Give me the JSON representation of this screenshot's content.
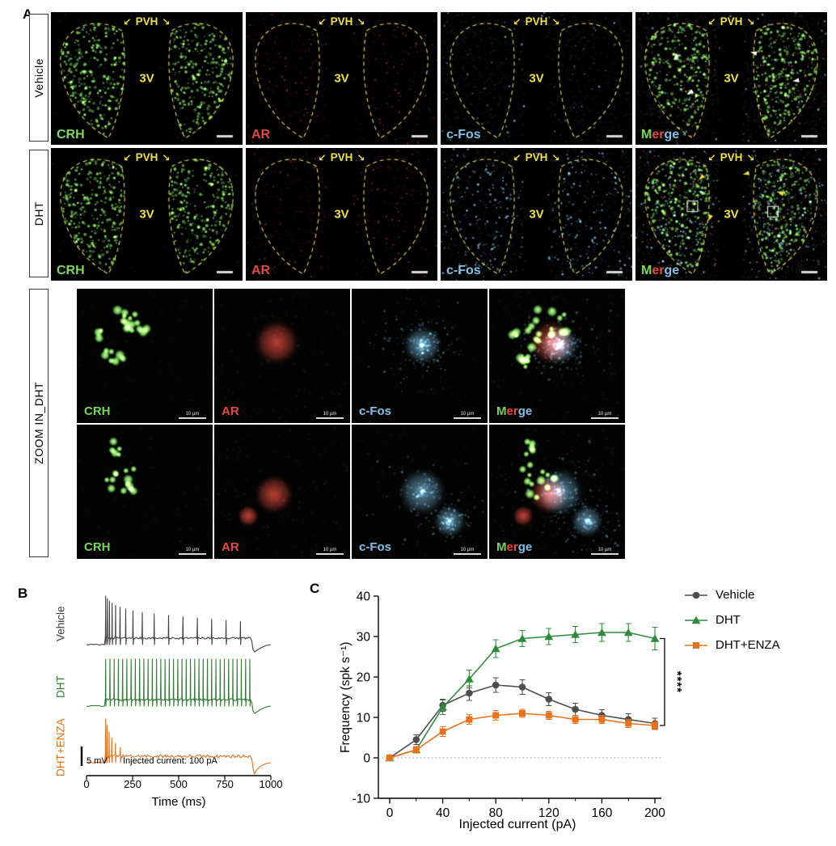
{
  "panels": {
    "a": "A",
    "b": "B",
    "c": "C"
  },
  "colors": {
    "outline_yellow": "#e6e14c",
    "annotation_yellow": "#f2e23a",
    "background": "#ffffff"
  },
  "microscopy": {
    "row_labels": [
      "Vehicle",
      "DHT"
    ],
    "zoom_row_label": "ZOOM IN_DHT",
    "channels": [
      "CRH",
      "AR",
      "c-Fos",
      "Merge"
    ],
    "channel_colors": [
      "#7cd65a",
      "#e44b3e",
      "#7fc3e8",
      "#ffffff"
    ],
    "merge_segments": [
      {
        "text": "M",
        "color": "#7cd65a"
      },
      {
        "text": "er",
        "color": "#e44b3e"
      },
      {
        "text": "ge",
        "color": "#7fc3e8"
      }
    ],
    "region_label": "PVH",
    "ventricle_label": "3V",
    "zoom_scale_label": "10 µm"
  },
  "traces": {
    "items": [
      {
        "label": "Vehicle",
        "color": "#3f3f3f"
      },
      {
        "label": "DHT",
        "color": "#2e7d32"
      },
      {
        "label": "DHT+ENZA",
        "color": "#e0701c"
      }
    ],
    "scale_label": "5 mV",
    "stim_label": "Injected current: 100 pA",
    "xlabel": "Time (ms)",
    "x_ticks": [
      0,
      250,
      500,
      750,
      1000
    ]
  },
  "chart_data": {
    "type": "line",
    "xlabel": "Injected current (pA)",
    "ylabel": "Frequency (spk s⁻¹)",
    "xlim": [
      -8,
      210
    ],
    "ylim": [
      -10,
      40
    ],
    "x_ticks": [
      0,
      40,
      80,
      120,
      160,
      200
    ],
    "x_minor_ticks": [
      20,
      60,
      100,
      140,
      180
    ],
    "y_ticks": [
      -10,
      0,
      10,
      20,
      30,
      40
    ],
    "zero_line": "dotted",
    "grid": false,
    "legend_position": "right",
    "significance": "****",
    "x": [
      0,
      20,
      40,
      60,
      80,
      100,
      120,
      140,
      160,
      180,
      200
    ],
    "series": [
      {
        "name": "Vehicle",
        "marker": "circle",
        "color": "#4d4d4d",
        "values": [
          0,
          4.5,
          13,
          16,
          18,
          17.5,
          14.5,
          12,
          10.5,
          9.5,
          8.5
        ],
        "errors": [
          0.3,
          1.2,
          1.5,
          1.8,
          1.8,
          1.8,
          1.6,
          1.5,
          1.4,
          1.4,
          1.3
        ]
      },
      {
        "name": "DHT",
        "marker": "triangle",
        "color": "#2e8b3c",
        "values": [
          0,
          2,
          12.5,
          19.5,
          27,
          29.5,
          30,
          30.5,
          31,
          31,
          29.5
        ],
        "errors": [
          0.3,
          0.8,
          1.8,
          2.2,
          2.2,
          2,
          2,
          2,
          2.2,
          2.2,
          2.8
        ]
      },
      {
        "name": "DHT+ENZA",
        "marker": "square",
        "color": "#e8731a",
        "values": [
          0,
          2,
          6.5,
          9.5,
          10.5,
          11,
          10.5,
          9.5,
          9.5,
          8.5,
          8
        ],
        "errors": [
          0.3,
          0.8,
          1.2,
          1.2,
          1.2,
          1,
          1,
          1,
          1,
          1,
          1
        ]
      }
    ]
  }
}
